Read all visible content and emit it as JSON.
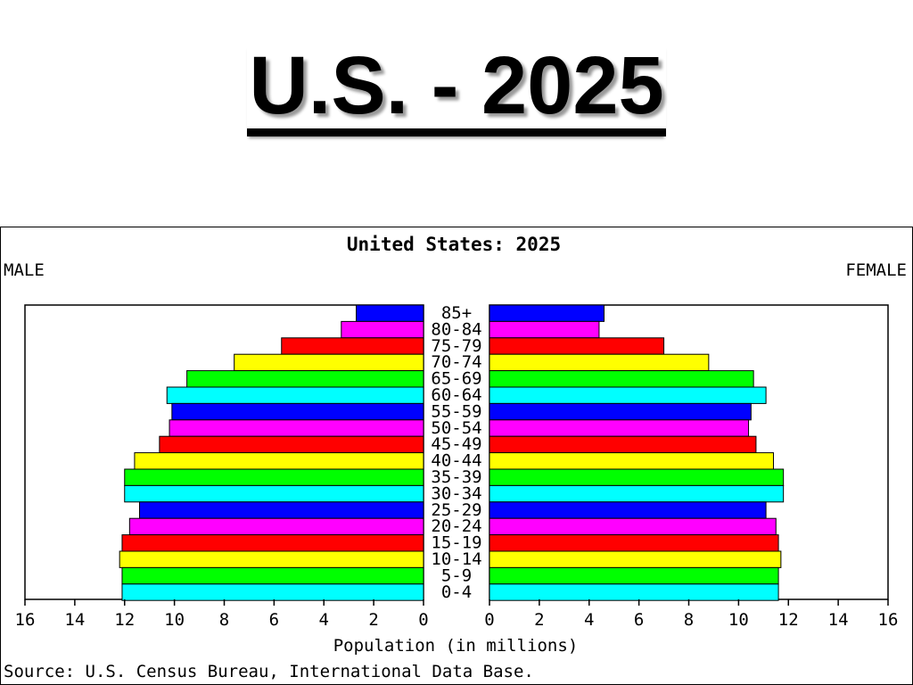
{
  "slide": {
    "title": "U.S. - 2025"
  },
  "chart_data": {
    "type": "bar",
    "title": "United States: 2025",
    "left_label": "MALE",
    "right_label": "FEMALE",
    "xlabel": "Population (in millions)",
    "source": "Source: U.S. Census Bureau, International Data Base.",
    "xlim": [
      0,
      16
    ],
    "xticks": [
      "0",
      "2",
      "4",
      "6",
      "8",
      "10",
      "12",
      "14",
      "16"
    ],
    "grid": false,
    "categories": [
      "85+",
      "80-84",
      "75-79",
      "70-74",
      "65-69",
      "60-64",
      "55-59",
      "50-54",
      "45-49",
      "40-44",
      "35-39",
      "30-34",
      "25-29",
      "20-24",
      "15-19",
      "10-14",
      "5-9",
      "0-4"
    ],
    "colors": [
      "#0000ff",
      "#ff00ff",
      "#ff0000",
      "#ffff00",
      "#00ff00",
      "#00ffff",
      "#0000ff",
      "#ff00ff",
      "#ff0000",
      "#ffff00",
      "#00ff00",
      "#00ffff",
      "#0000ff",
      "#ff00ff",
      "#ff0000",
      "#ffff00",
      "#00ff00",
      "#00ffff"
    ],
    "series": [
      {
        "name": "MALE",
        "values": [
          2.7,
          3.3,
          5.7,
          7.6,
          9.5,
          10.3,
          10.1,
          10.2,
          10.6,
          11.6,
          12.0,
          12.0,
          11.4,
          11.8,
          12.1,
          12.2,
          12.1,
          12.1
        ]
      },
      {
        "name": "FEMALE",
        "values": [
          4.6,
          4.4,
          7.0,
          8.8,
          10.6,
          11.1,
          10.5,
          10.4,
          10.7,
          11.4,
          11.8,
          11.8,
          11.1,
          11.5,
          11.6,
          11.7,
          11.6,
          11.6
        ]
      }
    ]
  }
}
